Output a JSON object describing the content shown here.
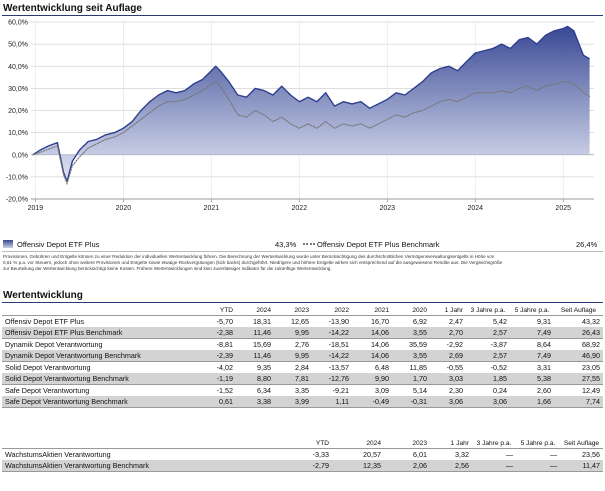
{
  "header": {
    "title": "Wertentwicklung seit Auflage"
  },
  "chart_data": {
    "type": "area",
    "title": "Wertentwicklung seit Auflage",
    "ylim": [
      -20,
      60
    ],
    "xlim": [
      2018.95,
      2025.35
    ],
    "y_ticks": [
      "60,0%",
      "50,0%",
      "40,0%",
      "30,0%",
      "20,0%",
      "10,0%",
      "0,0%",
      "-10,0%",
      "-20,0%"
    ],
    "y_tick_values": [
      60,
      50,
      40,
      30,
      20,
      10,
      0,
      -10,
      -20
    ],
    "x_ticks": [
      "2019",
      "2020",
      "2021",
      "2022",
      "2023",
      "2024",
      "2025"
    ],
    "x_tick_values": [
      2019,
      2020,
      2021,
      2022,
      2023,
      2024,
      2025
    ],
    "grid": true,
    "series": [
      {
        "name": "Offensiv Depot ETF Plus",
        "style": "filled-area",
        "color": "#2e3f8f",
        "points": [
          [
            2018.97,
            0
          ],
          [
            2019.05,
            2
          ],
          [
            2019.15,
            4
          ],
          [
            2019.25,
            5.5
          ],
          [
            2019.32,
            -8
          ],
          [
            2019.36,
            -12
          ],
          [
            2019.42,
            -3
          ],
          [
            2019.5,
            2
          ],
          [
            2019.6,
            6
          ],
          [
            2019.7,
            7
          ],
          [
            2019.8,
            9
          ],
          [
            2019.9,
            10
          ],
          [
            2020.0,
            12
          ],
          [
            2020.1,
            15
          ],
          [
            2020.2,
            20
          ],
          [
            2020.3,
            24
          ],
          [
            2020.4,
            27
          ],
          [
            2020.5,
            29
          ],
          [
            2020.6,
            28
          ],
          [
            2020.7,
            29
          ],
          [
            2020.8,
            32
          ],
          [
            2020.9,
            34
          ],
          [
            2021.0,
            38
          ],
          [
            2021.05,
            40
          ],
          [
            2021.1,
            38
          ],
          [
            2021.2,
            33
          ],
          [
            2021.3,
            27
          ],
          [
            2021.4,
            26
          ],
          [
            2021.5,
            30
          ],
          [
            2021.6,
            29
          ],
          [
            2021.7,
            27
          ],
          [
            2021.8,
            31
          ],
          [
            2021.9,
            27
          ],
          [
            2022.0,
            24
          ],
          [
            2022.1,
            26
          ],
          [
            2022.2,
            24
          ],
          [
            2022.3,
            28
          ],
          [
            2022.4,
            22
          ],
          [
            2022.5,
            24
          ],
          [
            2022.6,
            23
          ],
          [
            2022.7,
            24
          ],
          [
            2022.8,
            21
          ],
          [
            2022.9,
            23
          ],
          [
            2023.0,
            25
          ],
          [
            2023.1,
            28
          ],
          [
            2023.2,
            27
          ],
          [
            2023.3,
            30
          ],
          [
            2023.4,
            33
          ],
          [
            2023.5,
            37
          ],
          [
            2023.6,
            39
          ],
          [
            2023.7,
            40
          ],
          [
            2023.8,
            38
          ],
          [
            2023.9,
            42
          ],
          [
            2024.0,
            46
          ],
          [
            2024.1,
            47
          ],
          [
            2024.2,
            48
          ],
          [
            2024.3,
            50
          ],
          [
            2024.4,
            48
          ],
          [
            2024.5,
            52
          ],
          [
            2024.6,
            53
          ],
          [
            2024.7,
            50
          ],
          [
            2024.8,
            54
          ],
          [
            2024.9,
            56
          ],
          [
            2025.0,
            57
          ],
          [
            2025.05,
            58
          ],
          [
            2025.12,
            56
          ],
          [
            2025.18,
            50
          ],
          [
            2025.23,
            45
          ],
          [
            2025.3,
            43.3
          ]
        ]
      },
      {
        "name": "Offensiv Depot ETF Plus Benchmark",
        "style": "dotted-line",
        "color": "#777777",
        "points": [
          [
            2018.97,
            0
          ],
          [
            2019.05,
            1
          ],
          [
            2019.15,
            2.5
          ],
          [
            2019.25,
            4
          ],
          [
            2019.32,
            -9
          ],
          [
            2019.36,
            -13
          ],
          [
            2019.42,
            -5
          ],
          [
            2019.5,
            -1
          ],
          [
            2019.6,
            3
          ],
          [
            2019.7,
            5
          ],
          [
            2019.8,
            7
          ],
          [
            2019.9,
            8
          ],
          [
            2020.0,
            10
          ],
          [
            2020.1,
            13
          ],
          [
            2020.2,
            16
          ],
          [
            2020.3,
            19
          ],
          [
            2020.4,
            22
          ],
          [
            2020.5,
            24
          ],
          [
            2020.6,
            24
          ],
          [
            2020.7,
            25
          ],
          [
            2020.8,
            27
          ],
          [
            2020.9,
            29
          ],
          [
            2021.0,
            32
          ],
          [
            2021.05,
            33
          ],
          [
            2021.1,
            31
          ],
          [
            2021.2,
            25
          ],
          [
            2021.3,
            18
          ],
          [
            2021.4,
            17
          ],
          [
            2021.5,
            20
          ],
          [
            2021.6,
            18
          ],
          [
            2021.7,
            15
          ],
          [
            2021.8,
            17
          ],
          [
            2021.9,
            14
          ],
          [
            2022.0,
            12
          ],
          [
            2022.1,
            14
          ],
          [
            2022.2,
            12
          ],
          [
            2022.3,
            15
          ],
          [
            2022.4,
            12
          ],
          [
            2022.5,
            14
          ],
          [
            2022.6,
            13
          ],
          [
            2022.7,
            14
          ],
          [
            2022.8,
            12
          ],
          [
            2022.9,
            14
          ],
          [
            2023.0,
            16
          ],
          [
            2023.1,
            18
          ],
          [
            2023.2,
            17
          ],
          [
            2023.3,
            19
          ],
          [
            2023.4,
            20
          ],
          [
            2023.5,
            22
          ],
          [
            2023.6,
            24
          ],
          [
            2023.7,
            25
          ],
          [
            2023.8,
            24
          ],
          [
            2023.9,
            26
          ],
          [
            2024.0,
            28
          ],
          [
            2024.1,
            28
          ],
          [
            2024.2,
            28
          ],
          [
            2024.3,
            29
          ],
          [
            2024.4,
            28
          ],
          [
            2024.5,
            30
          ],
          [
            2024.6,
            31
          ],
          [
            2024.7,
            29
          ],
          [
            2024.8,
            31
          ],
          [
            2024.9,
            32
          ],
          [
            2025.0,
            33
          ],
          [
            2025.05,
            33
          ],
          [
            2025.12,
            32
          ],
          [
            2025.18,
            30
          ],
          [
            2025.23,
            28
          ],
          [
            2025.3,
            26.4
          ]
        ]
      }
    ]
  },
  "legend": {
    "series1_name": "Offensiv Depot ETF Plus",
    "series1_value": "43,3%",
    "series2_name": "Offensiv Depot ETF Plus Benchmark",
    "series2_value": "26,4%"
  },
  "disclaimer": {
    "line1": "Provisionen, Gebühren und Entgelte können zu einer Reduktion der individuellen Wertentwicklung führen. Die Berechnung der Wertentwicklung wurde unter Berücksichtigung des durchschnittlichen Vermögensverwaltungsentgelts in Höhe von",
    "line2": "0,61 % p.a. vor Steuern, jedoch ohne weitere Provisionen und Entgelte sowie etwaige Rückvergütungen (kick backs) durchgeführt. Niedrigere und höhere Entgelte wirken sich entsprechend auf die ausgewiesene Rendite aus. Die Vergleichsgröße",
    "line3": "zur Beurteilung der Wertentwicklung berücksichtigt keine Kosten. Frühere Wertentwicklungen sind kein zuverlässiger Indikator für die zukünftige Wertentwicklung."
  },
  "table1": {
    "title": "Wertentwicklung",
    "headers": [
      "",
      "YTD",
      "2024",
      "2023",
      "2022",
      "2021",
      "2020",
      "1 Jahr",
      "3 Jahre p.a.",
      "5 Jahre p.a.",
      "Seit Auflage"
    ],
    "rows": [
      [
        "Offensiv Depot ETF Plus",
        "-5,70",
        "18,31",
        "12,65",
        "-13,90",
        "16,70",
        "6,92",
        "2,47",
        "5,42",
        "9,31",
        "43,32"
      ],
      [
        "Offensiv Depot ETF Plus Benchmark",
        "-2,38",
        "11,46",
        "9,95",
        "-14,22",
        "14,06",
        "3,55",
        "2,70",
        "2,57",
        "7,49",
        "26,43"
      ],
      [
        "Dynamik Depot Verantwortung",
        "-8,81",
        "15,69",
        "2,76",
        "-18,51",
        "14,06",
        "35,59",
        "-2,92",
        "-3,87",
        "8,64",
        "68,92"
      ],
      [
        "Dynamik Depot Verantwortung Benchmark",
        "-2,39",
        "11,46",
        "9,95",
        "-14,22",
        "14,06",
        "3,55",
        "2,69",
        "2,57",
        "7,49",
        "46,90"
      ],
      [
        "Solid Depot Verantwortung",
        "-4,02",
        "9,35",
        "2,84",
        "-13,57",
        "6,48",
        "11,85",
        "-0,55",
        "-0,52",
        "3,31",
        "23,05"
      ],
      [
        "Solid Depot Verantwortung Benchmark",
        "-1,19",
        "8,80",
        "7,81",
        "-12,76",
        "9,90",
        "1,70",
        "3,03",
        "1,85",
        "5,38",
        "27,55"
      ],
      [
        "Safe Depot Verantwortung",
        "-1,52",
        "6,34",
        "3,35",
        "-9,21",
        "3,09",
        "5,14",
        "2,30",
        "0,24",
        "2,60",
        "12,49"
      ],
      [
        "Safe Depot Verantwortung Benchmark",
        "0,61",
        "3,38",
        "3,99",
        "1,11",
        "-0,49",
        "-0,31",
        "3,06",
        "3,06",
        "1,66",
        "7,74"
      ]
    ]
  },
  "table2": {
    "headers": [
      "",
      "YTD",
      "2024",
      "2023",
      "1 Jahr",
      "3 Jahre p.a.",
      "5 Jahre p.a.",
      "Seit Auflage"
    ],
    "rows": [
      [
        "WachstumsAktien Verantwortung",
        "-3,33",
        "20,57",
        "6,01",
        "3,32",
        "—",
        "—",
        "23,56"
      ],
      [
        "WachstumsAktien Verantwortung Benchmark",
        "-2,79",
        "12,35",
        "2,06",
        "2,56",
        "—",
        "—",
        "11,47"
      ]
    ]
  }
}
